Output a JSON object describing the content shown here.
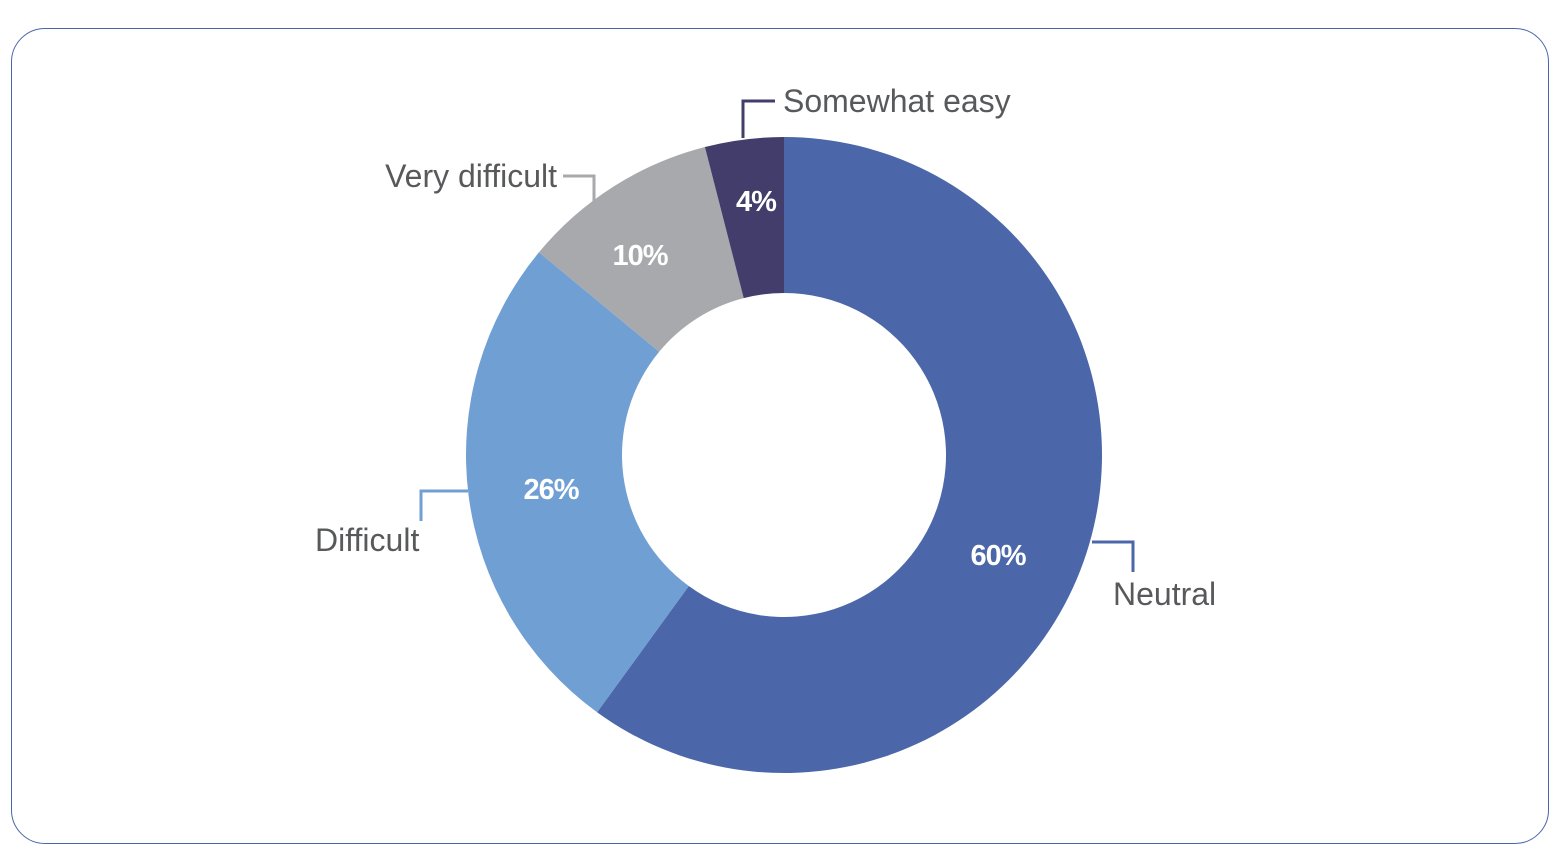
{
  "chart_data": {
    "type": "pie",
    "style": "donut",
    "title": "",
    "slices": [
      {
        "label": "Neutral",
        "value": 60,
        "value_label": "60%",
        "color": "#4b67a9"
      },
      {
        "label": "Difficult",
        "value": 26,
        "value_label": "26%",
        "color": "#709fd3"
      },
      {
        "label": "Very difficult",
        "value": 10,
        "value_label": "10%",
        "color": "#a8a9ac"
      },
      {
        "label": "Somewhat easy",
        "value": 4,
        "value_label": "4%",
        "color": "#423d6b"
      }
    ],
    "start_angle_deg": 0,
    "direction": "clockwise",
    "legend": "none",
    "label_style": "callout leader lines",
    "frame_color": "#4a66a8",
    "text_color": "#58595b"
  }
}
